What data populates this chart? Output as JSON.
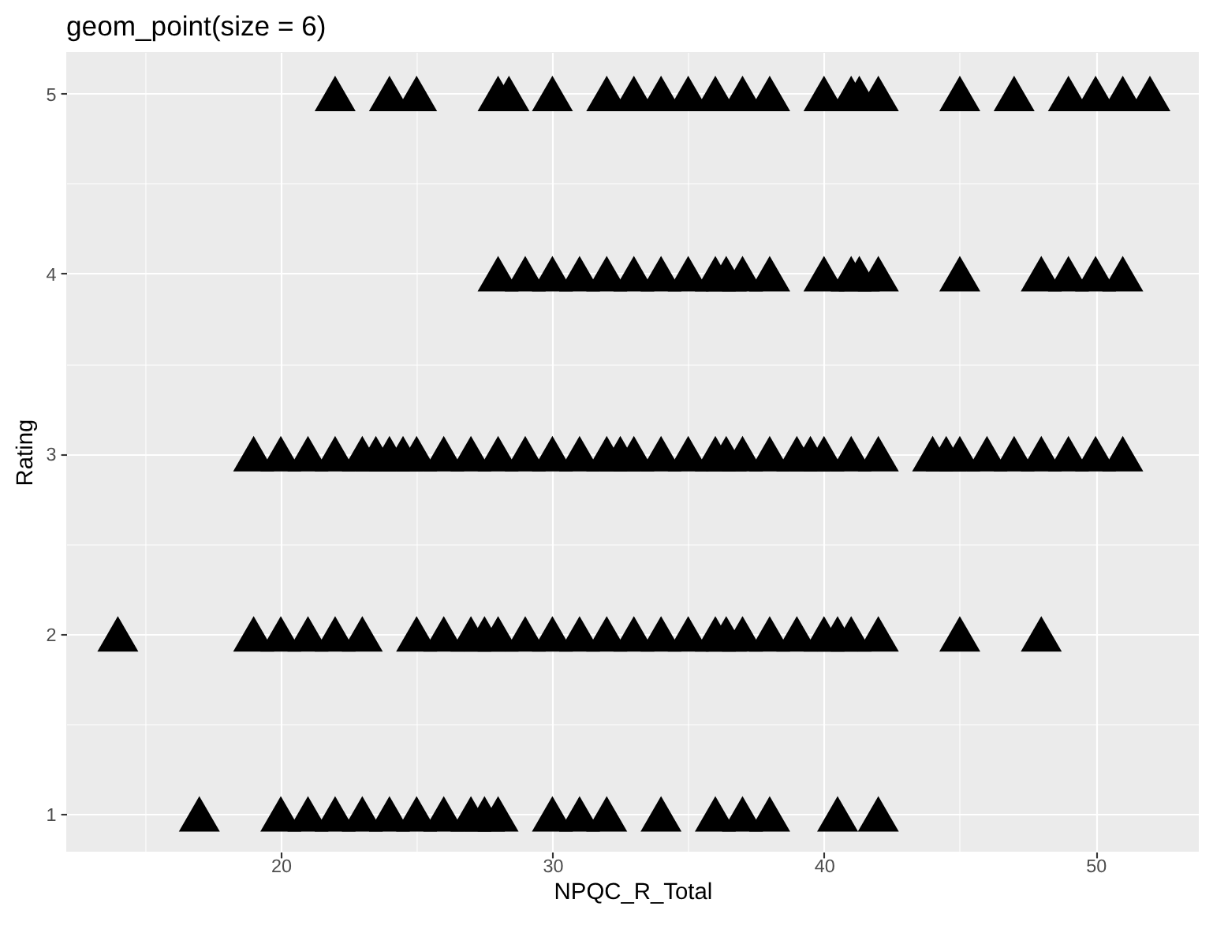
{
  "chart_data": {
    "type": "scatter",
    "title": "geom_point(size = 6)",
    "xlabel": "NPQC_R_Total",
    "ylabel": "Rating",
    "x": [
      22,
      24,
      25,
      28,
      28.4,
      30,
      32,
      33,
      34,
      35,
      36,
      37,
      38,
      40,
      41,
      41.3,
      42,
      45,
      47,
      49,
      50,
      51,
      52,
      28,
      29,
      30,
      31,
      32,
      33,
      34,
      35,
      36,
      36.4,
      37,
      38,
      40,
      41,
      41.3,
      42,
      45,
      48,
      49,
      50,
      51,
      19,
      20,
      21,
      22,
      23,
      23.5,
      24,
      24.5,
      25,
      26,
      27,
      28,
      29,
      30,
      31,
      32,
      32.5,
      33,
      34,
      35,
      36,
      36.4,
      37,
      38,
      39,
      39.5,
      40,
      41,
      42,
      44,
      44.5,
      45,
      46,
      47,
      48,
      49,
      50,
      51,
      14,
      19,
      20,
      21,
      22,
      23,
      25,
      26,
      27,
      27.5,
      28,
      29,
      30,
      31,
      32,
      33,
      34,
      35,
      36,
      36.4,
      37,
      38,
      39,
      40,
      40.5,
      41,
      42,
      45,
      48,
      17,
      20,
      21,
      22,
      23,
      24,
      25,
      26,
      27,
      27.5,
      28,
      30,
      31,
      32,
      34,
      36,
      37,
      38,
      40.5,
      42
    ],
    "values": [
      5,
      5,
      5,
      5,
      5,
      5,
      5,
      5,
      5,
      5,
      5,
      5,
      5,
      5,
      5,
      5,
      5,
      5,
      5,
      5,
      5,
      5,
      5,
      4,
      4,
      4,
      4,
      4,
      4,
      4,
      4,
      4,
      4,
      4,
      4,
      4,
      4,
      4,
      4,
      4,
      4,
      4,
      4,
      4,
      3,
      3,
      3,
      3,
      3,
      3,
      3,
      3,
      3,
      3,
      3,
      3,
      3,
      3,
      3,
      3,
      3,
      3,
      3,
      3,
      3,
      3,
      3,
      3,
      3,
      3,
      3,
      3,
      3,
      3,
      3,
      3,
      3,
      3,
      3,
      3,
      3,
      3,
      2,
      2,
      2,
      2,
      2,
      2,
      2,
      2,
      2,
      2,
      2,
      2,
      2,
      2,
      2,
      2,
      2,
      2,
      2,
      2,
      2,
      2,
      2,
      2,
      2,
      2,
      2,
      2,
      2,
      1,
      1,
      1,
      1,
      1,
      1,
      1,
      1,
      1,
      1,
      1,
      1,
      1,
      1,
      1,
      1,
      1,
      1,
      1,
      1
    ],
    "color": "#000000",
    "marker": "triangle",
    "xlim": [
      12.1,
      53.8
    ],
    "xticks": [
      {
        "value": 15,
        "label": null
      },
      20,
      {
        "value": 25,
        "label": null
      },
      30,
      {
        "value": 35,
        "label": null
      },
      40,
      {
        "value": 45,
        "label": null
      },
      50
    ],
    "ylim": [
      0.79,
      5.23
    ],
    "yticks": [
      1,
      {
        "value": 1.5,
        "label": null
      },
      2,
      {
        "value": 2.5,
        "label": null
      },
      3,
      {
        "value": 3.5,
        "label": null
      },
      4,
      {
        "value": 4.5,
        "label": null
      },
      5
    ],
    "grid": true
  }
}
